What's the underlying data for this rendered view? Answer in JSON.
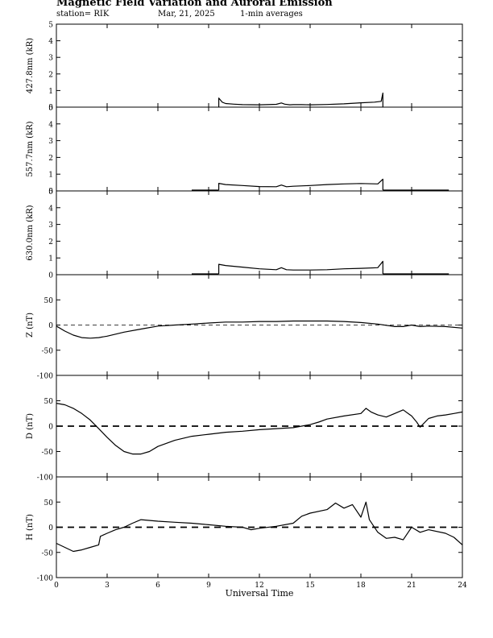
{
  "header": {
    "title": "Magnetic Field Variation and Auroral Emission",
    "station": "station= RIK",
    "date": "Mar, 21, 2025",
    "averaging": "1-min averages"
  },
  "chart_data": [
    {
      "type": "line",
      "ylabel": "427.8nm (kR)",
      "ylim": [
        0,
        5
      ],
      "yticks": [
        "0",
        "1",
        "2",
        "3",
        "4",
        "5"
      ],
      "xlim": [
        0,
        24
      ],
      "series": [
        {
          "x": [
            9.6,
            9.6,
            9.8,
            10,
            10.5,
            11,
            12,
            13,
            13.3,
            13.5,
            13.8,
            14,
            14.5,
            15,
            16,
            17,
            18,
            18.8,
            19.2,
            19.3,
            19.3
          ],
          "values": [
            0,
            0.55,
            0.3,
            0.22,
            0.18,
            0.15,
            0.14,
            0.17,
            0.25,
            0.18,
            0.14,
            0.15,
            0.15,
            0.14,
            0.16,
            0.2,
            0.26,
            0.3,
            0.35,
            0.85,
            0
          ]
        }
      ]
    },
    {
      "type": "line",
      "ylabel": "557.7nm (kR)",
      "ylim": [
        0,
        5
      ],
      "yticks": [
        "0",
        "1",
        "2",
        "3",
        "4",
        "5"
      ],
      "xlim": [
        0,
        24
      ],
      "series": [
        {
          "x": [
            8,
            9.6
          ],
          "values": [
            0.05,
            0.05
          ]
        },
        {
          "x": [
            9.6,
            9.6,
            10,
            11,
            12,
            13,
            13.3,
            13.6,
            14,
            15,
            16,
            17,
            18,
            19,
            19.3,
            19.3
          ],
          "values": [
            0.05,
            0.45,
            0.38,
            0.32,
            0.26,
            0.25,
            0.35,
            0.25,
            0.28,
            0.32,
            0.38,
            0.42,
            0.44,
            0.42,
            0.7,
            0.05
          ]
        },
        {
          "x": [
            19.3,
            23.2
          ],
          "values": [
            0.05,
            0.05
          ]
        }
      ]
    },
    {
      "type": "line",
      "ylabel": "630.0nm (kR)",
      "ylim": [
        0,
        5
      ],
      "yticks": [
        "0",
        "1",
        "2",
        "3",
        "4",
        "5"
      ],
      "xlim": [
        0,
        24
      ],
      "series": [
        {
          "x": [
            8,
            9.6
          ],
          "values": [
            0.05,
            0.05
          ]
        },
        {
          "x": [
            9.6,
            9.6,
            10,
            11,
            12,
            13,
            13.3,
            13.6,
            14,
            15,
            16,
            17,
            18,
            19,
            19.3,
            19.3
          ],
          "values": [
            0.05,
            0.62,
            0.55,
            0.45,
            0.35,
            0.3,
            0.42,
            0.3,
            0.28,
            0.28,
            0.3,
            0.35,
            0.38,
            0.42,
            0.8,
            0.05
          ]
        },
        {
          "x": [
            19.3,
            23.2
          ],
          "values": [
            0.05,
            0.05
          ]
        }
      ]
    },
    {
      "type": "line",
      "ylabel": "Z (nT)",
      "ylim": [
        -100,
        100
      ],
      "yticks": [
        "-100",
        "-50",
        "0",
        "50"
      ],
      "xlim": [
        0,
        24
      ],
      "series": [
        {
          "x": [
            0,
            0.5,
            1,
            1.5,
            2,
            2.5,
            3,
            4,
            5,
            6,
            7,
            8,
            9,
            10,
            11,
            12,
            13,
            14,
            15,
            16,
            17,
            18,
            19,
            20,
            20.5,
            21,
            21.5,
            22,
            23,
            24
          ],
          "values": [
            -2,
            -12,
            -20,
            -25,
            -26,
            -25,
            -22,
            -14,
            -8,
            -2,
            0,
            2,
            4,
            6,
            6,
            7,
            7,
            8,
            8,
            8,
            7,
            5,
            2,
            -3,
            -3,
            0,
            -3,
            -2,
            -3,
            -6
          ]
        }
      ]
    },
    {
      "type": "line",
      "ylabel": "D (nT)",
      "ylim": [
        -100,
        100
      ],
      "yticks": [
        "-100",
        "-50",
        "0",
        "50"
      ],
      "xlim": [
        0,
        24
      ],
      "series": [
        {
          "x": [
            0,
            0.5,
            1,
            1.5,
            2,
            2.5,
            3,
            3.5,
            4,
            4.5,
            5,
            5.5,
            6,
            7,
            8,
            9,
            10,
            11,
            12,
            13,
            14,
            14.5,
            15,
            15.5,
            16,
            17,
            18,
            18.3,
            18.6,
            19,
            19.5,
            20,
            20.5,
            21,
            21.3,
            21.5,
            22,
            22.5,
            23,
            23.5,
            24
          ],
          "values": [
            45,
            42,
            35,
            25,
            12,
            -5,
            -22,
            -38,
            -50,
            -55,
            -55,
            -50,
            -40,
            -28,
            -20,
            -16,
            -12,
            -10,
            -7,
            -5,
            -3,
            0,
            3,
            8,
            14,
            20,
            25,
            35,
            28,
            22,
            18,
            25,
            32,
            20,
            8,
            -2,
            15,
            20,
            22,
            25,
            28
          ]
        }
      ]
    },
    {
      "type": "line",
      "ylabel": "H (nT)",
      "ylim": [
        -100,
        100
      ],
      "yticks": [
        "-100",
        "-50",
        "0",
        "50"
      ],
      "xlim": [
        0,
        24
      ],
      "series": [
        {
          "x": [
            0,
            0.5,
            1,
            1.5,
            2,
            2.5,
            2.6,
            3,
            3.5,
            4,
            4.5,
            5,
            6,
            7,
            8,
            9,
            10,
            11,
            11.5,
            12,
            13,
            14,
            14.5,
            15,
            16,
            16.5,
            17,
            17.5,
            18,
            18.3,
            18.5,
            19,
            19.5,
            20,
            20.5,
            21,
            21.5,
            22,
            23,
            23.5,
            24
          ],
          "values": [
            -32,
            -40,
            -48,
            -45,
            -40,
            -35,
            -18,
            -12,
            -5,
            0,
            8,
            15,
            12,
            10,
            8,
            5,
            2,
            0,
            -5,
            -2,
            2,
            8,
            22,
            28,
            35,
            48,
            38,
            45,
            20,
            50,
            15,
            -10,
            -22,
            -20,
            -25,
            0,
            -10,
            -5,
            -12,
            -20,
            -35
          ]
        }
      ]
    }
  ],
  "shared_x": {
    "ticks": [
      0,
      3,
      6,
      9,
      12,
      15,
      18,
      21,
      24
    ],
    "ticklabels": [
      "0",
      "3",
      "6",
      "9",
      "12",
      "15",
      "18",
      "21",
      "24"
    ],
    "xlabel": "Universal Time"
  }
}
